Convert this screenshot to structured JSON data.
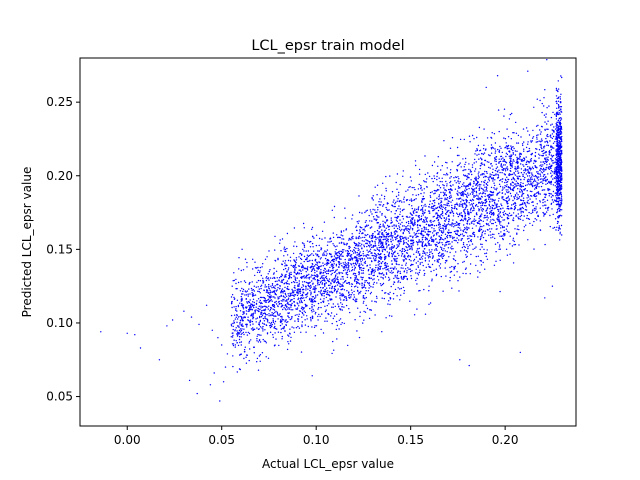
{
  "chart_data": {
    "type": "scatter",
    "title": "LCL_epsr train model",
    "xlabel": "Actual LCL_epsr value",
    "ylabel": "Predicted LCL_epsr value",
    "xlim": [
      -0.025,
      0.2375
    ],
    "ylim": [
      0.03,
      0.28
    ],
    "xticks": [
      0.0,
      0.05,
      0.1,
      0.15,
      0.2
    ],
    "xtick_labels": [
      "0.00",
      "0.05",
      "0.10",
      "0.15",
      "0.20"
    ],
    "yticks": [
      0.05,
      0.1,
      0.15,
      0.2,
      0.25
    ],
    "ytick_labels": [
      "0.05",
      "0.10",
      "0.15",
      "0.20",
      "0.25"
    ],
    "grid": false,
    "legend": "none",
    "marker_color": "#0000ff",
    "trend": {
      "x": [
        0.055,
        0.23
      ],
      "y": [
        0.1,
        0.21
      ]
    },
    "cloud_spread": {
      "x": [
        0.055,
        0.23
      ],
      "sd": [
        0.015,
        0.02
      ]
    },
    "series": [
      {
        "x": [
          -0.014,
          0.0,
          0.004,
          0.007,
          0.017,
          0.021,
          0.024,
          0.03,
          0.034,
          0.038,
          0.042,
          0.045,
          0.048,
          0.05,
          0.052,
          0.033,
          0.037,
          0.044,
          0.046,
          0.049,
          0.051,
          0.053,
          0.176,
          0.181,
          0.208,
          0.221,
          0.225,
          0.19,
          0.196,
          0.212,
          0.217
        ],
        "y": [
          0.094,
          0.093,
          0.092,
          0.083,
          0.075,
          0.098,
          0.102,
          0.108,
          0.104,
          0.099,
          0.112,
          0.095,
          0.09,
          0.085,
          0.07,
          0.061,
          0.052,
          0.058,
          0.066,
          0.047,
          0.06,
          0.079,
          0.075,
          0.071,
          0.08,
          0.117,
          0.125,
          0.26,
          0.268,
          0.271,
          0.252
        ]
      }
    ]
  }
}
